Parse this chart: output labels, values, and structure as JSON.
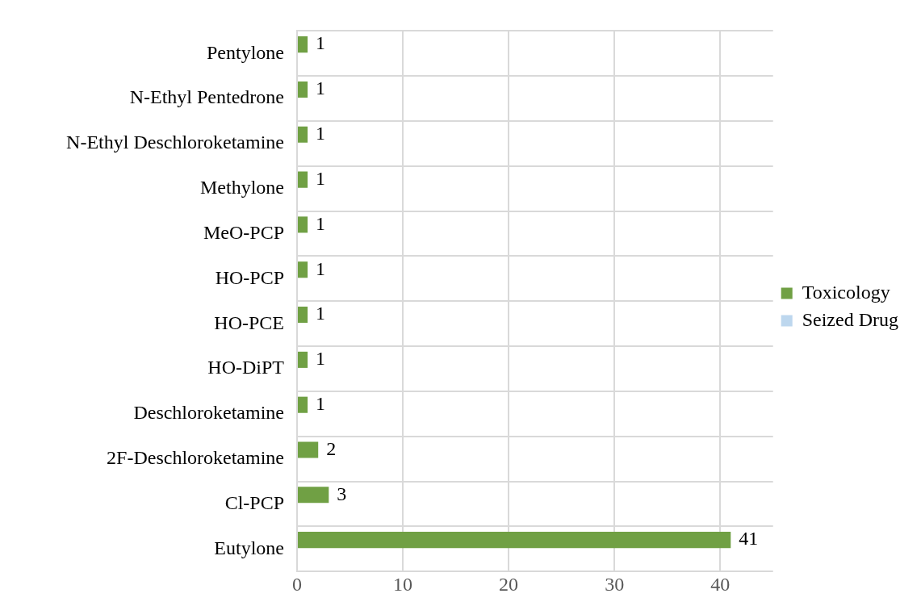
{
  "chart_data": {
    "type": "bar",
    "orientation": "horizontal",
    "categories": [
      "Pentylone",
      "N-Ethyl Pentedrone",
      "N-Ethyl Deschloroketamine",
      "Methylone",
      "MeO-PCP",
      "HO-PCP",
      "HO-PCE",
      "HO-DiPT",
      "Deschloroketamine",
      "2F-Deschloroketamine",
      "Cl-PCP",
      "Eutylone"
    ],
    "series": [
      {
        "name": "Toxicology",
        "color": "#70a044",
        "values": [
          1,
          1,
          1,
          1,
          1,
          1,
          1,
          1,
          1,
          2,
          3,
          41
        ]
      },
      {
        "name": "Seized Drug",
        "color": "#bdd7ee",
        "values": [
          null,
          null,
          null,
          null,
          null,
          null,
          null,
          null,
          null,
          null,
          null,
          null
        ]
      }
    ],
    "xlim": [
      0,
      45
    ],
    "xticks": [
      0,
      10,
      20,
      30,
      40
    ],
    "grid": true,
    "legend": "right",
    "data_labels": true
  }
}
